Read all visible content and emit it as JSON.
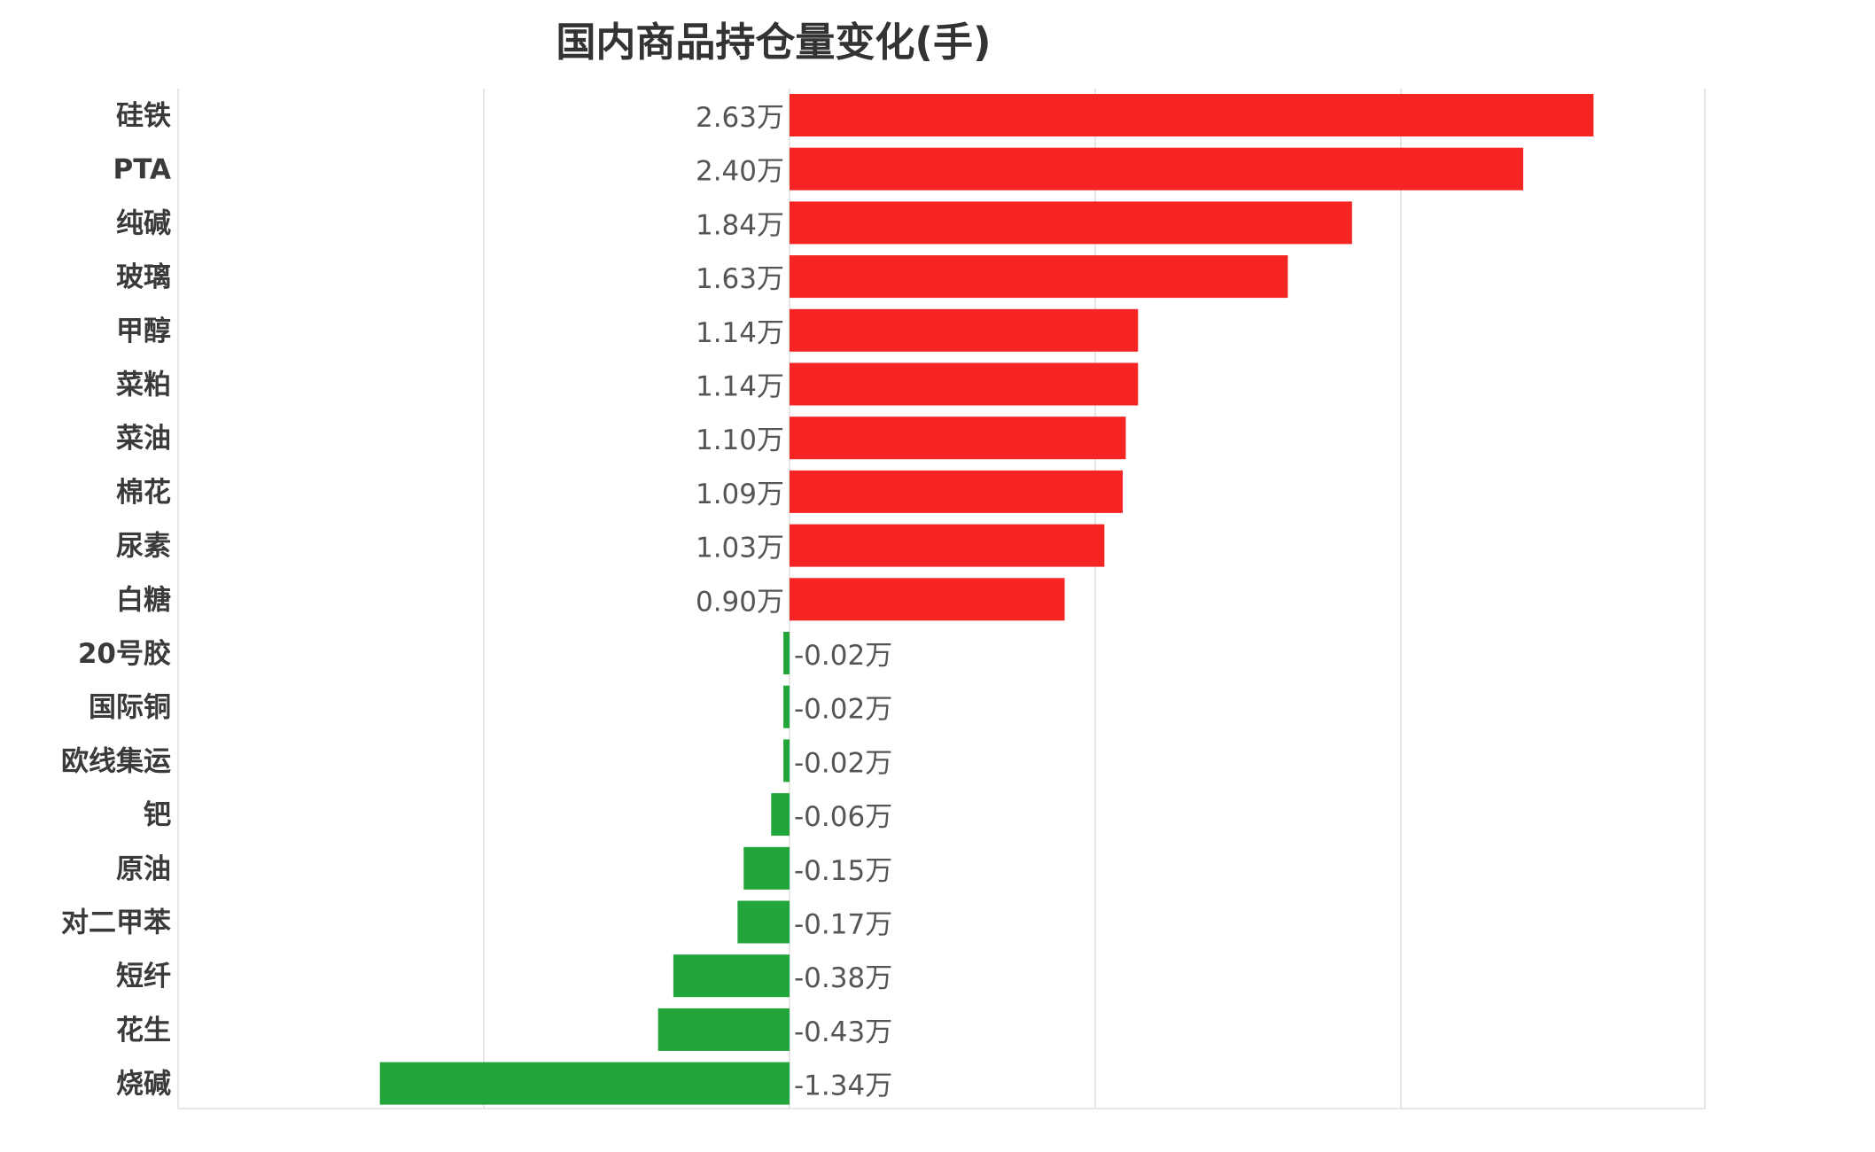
{
  "chart_data": {
    "type": "bar",
    "orientation": "horizontal",
    "title": "国内商品持仓量变化(手)",
    "xlabel": "",
    "ylabel": "",
    "unit_suffix": "万",
    "xlim": [
      -2.0,
      3.0
    ],
    "grid": true,
    "legend": false,
    "colors": {
      "positive": "#f72424",
      "negative": "#22a53a"
    },
    "categories": [
      "硅铁",
      "PTA",
      "纯碱",
      "玻璃",
      "甲醇",
      "菜粕",
      "菜油",
      "棉花",
      "尿素",
      "白糖",
      "20号胶",
      "国际铜",
      "欧线集运",
      "钯",
      "原油",
      "对二甲苯",
      "短纤",
      "花生",
      "烧碱"
    ],
    "values": [
      2.63,
      2.4,
      1.84,
      1.63,
      1.14,
      1.14,
      1.1,
      1.09,
      1.03,
      0.9,
      -0.02,
      -0.02,
      -0.02,
      -0.06,
      -0.15,
      -0.17,
      -0.38,
      -0.43,
      -1.34
    ],
    "value_labels": [
      "2.63万",
      "2.40万",
      "1.84万",
      "1.63万",
      "1.14万",
      "1.14万",
      "1.10万",
      "1.09万",
      "1.03万",
      "0.90万",
      "-0.02万",
      "-0.02万",
      "-0.02万",
      "-0.06万",
      "-0.15万",
      "-0.17万",
      "-0.38万",
      "-0.43万",
      "-1.34万"
    ]
  }
}
